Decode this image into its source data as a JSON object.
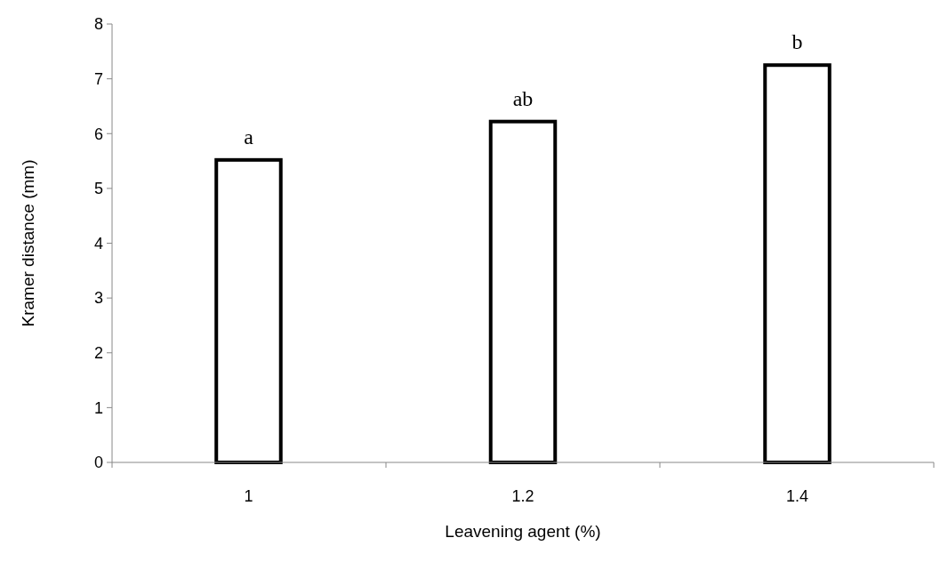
{
  "chart_data": {
    "type": "bar",
    "xlabel": "Leavening agent (%)",
    "ylabel": "Kramer distance (mm)",
    "categories": [
      "1",
      "1.2",
      "1.4"
    ],
    "values": [
      5.52,
      6.22,
      7.25
    ],
    "color": "#ffffff",
    "ylim": [
      0,
      8
    ],
    "yticks": [
      0,
      1,
      2,
      3,
      4,
      5,
      6,
      7,
      8
    ],
    "grid": false,
    "annotations": [
      {
        "text": "a",
        "x": "1",
        "y": 5.52
      },
      {
        "text": "ab",
        "x": "1.2",
        "y": 6.22
      },
      {
        "text": "b",
        "x": "1.4",
        "y": 7.25
      }
    ]
  }
}
